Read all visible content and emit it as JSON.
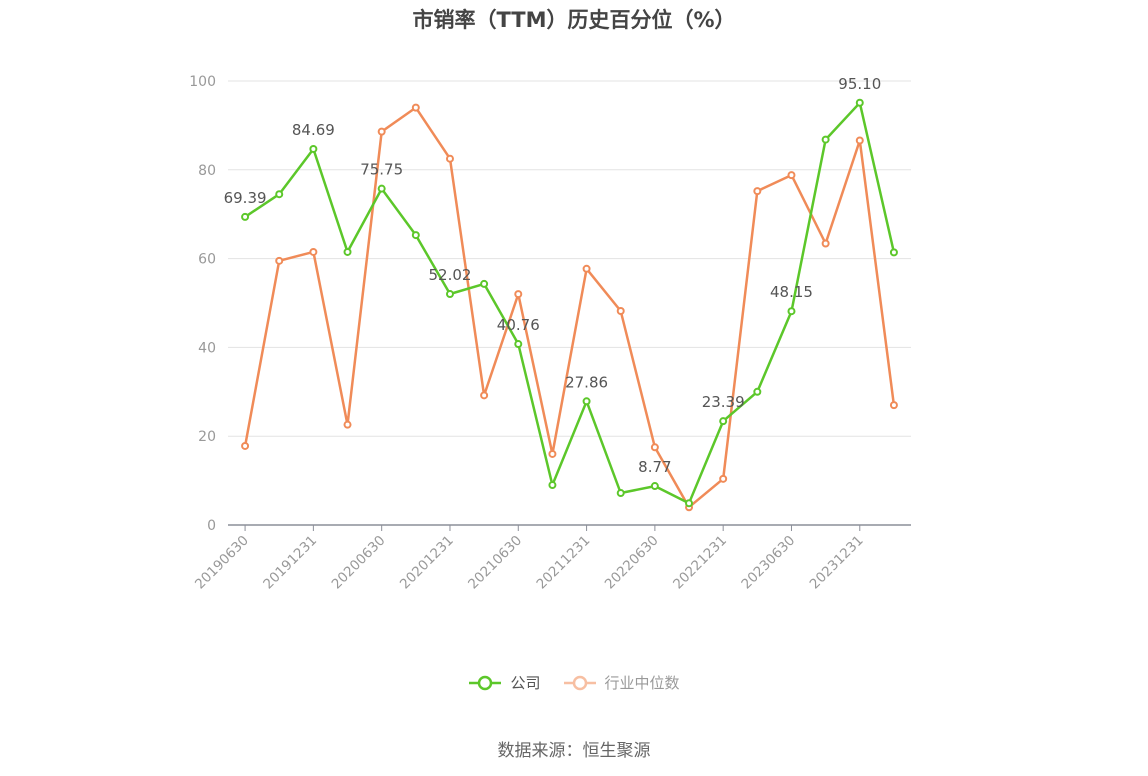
{
  "title": "市销率（TTM）历史百分位（%）",
  "source": "数据来源：恒生聚源",
  "chart_data": {
    "type": "line",
    "ylim": [
      0,
      100
    ],
    "yticks": [
      0,
      20,
      40,
      60,
      80,
      100
    ],
    "x": [
      "20190630",
      "20190930",
      "20191231",
      "20200331",
      "20200630",
      "20200930",
      "20201231",
      "20210331",
      "20210630",
      "20210930",
      "20211231",
      "20220331",
      "20220630",
      "20220930",
      "20221231",
      "20230331",
      "20230630",
      "20230930",
      "20231231",
      "20240331"
    ],
    "xtick_labels": [
      "20190630",
      "20191231",
      "20200630",
      "20201231",
      "20210630",
      "20211231",
      "20220630",
      "20221231",
      "20230630",
      "20231231"
    ],
    "series": [
      {
        "name": "公司",
        "color": "#5cc72a",
        "values": [
          69.39,
          74.5,
          84.69,
          61.5,
          75.75,
          65.3,
          52.02,
          54.3,
          40.76,
          9.0,
          27.86,
          7.2,
          8.77,
          4.9,
          23.39,
          30.0,
          48.15,
          86.8,
          95.1,
          61.4
        ],
        "labels": {
          "0": "69.39",
          "2": "84.69",
          "4": "75.75",
          "6": "52.02",
          "8": "40.76",
          "10": "27.86",
          "12": "8.77",
          "14": "23.39",
          "16": "48.15",
          "18": "95.10"
        }
      },
      {
        "name": "行业中位数",
        "color": "#f08b58",
        "values": [
          17.8,
          59.5,
          61.5,
          22.6,
          88.6,
          94.0,
          82.5,
          29.2,
          52.0,
          16.0,
          57.7,
          48.2,
          17.5,
          4.0,
          10.4,
          75.2,
          78.8,
          63.4,
          86.6,
          27.0
        ]
      }
    ],
    "legend_position": "bottom",
    "grid": true
  }
}
